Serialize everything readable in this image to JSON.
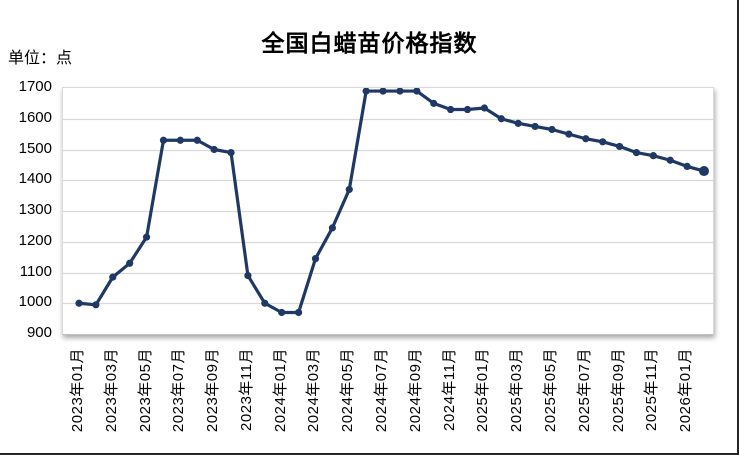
{
  "chart": {
    "title": "全国白蜡苗价格指数",
    "unit_label": "单位：点"
  },
  "chart_data": {
    "type": "line",
    "title": "全国白蜡苗价格指数",
    "unit": "点",
    "categories": [
      "2023年01月",
      "2023年02月",
      "2023年03月",
      "2023年04月",
      "2023年05月",
      "2023年06月",
      "2023年07月",
      "2023年08月",
      "2023年09月",
      "2023年10月",
      "2023年11月",
      "2023年12月",
      "2024年01月",
      "2024年02月",
      "2024年03月",
      "2024年04月",
      "2024年05月",
      "2024年06月",
      "2024年07月",
      "2024年08月",
      "2024年09月",
      "2024年10月",
      "2024年11月",
      "2024年12月",
      "2025年01月",
      "2025年02月",
      "2025年03月",
      "2025年04月",
      "2025年05月",
      "2025年06月",
      "2025年07月",
      "2025年08月",
      "2025年09月",
      "2025年10月",
      "2025年11月",
      "2025年12月",
      "2026年01月",
      "2026年02月"
    ],
    "values": [
      1000,
      995,
      1085,
      1130,
      1215,
      1530,
      1530,
      1530,
      1500,
      1490,
      1090,
      1000,
      970,
      970,
      1145,
      1245,
      1370,
      1690,
      1690,
      1690,
      1690,
      1650,
      1630,
      1630,
      1635,
      1600,
      1585,
      1575,
      1565,
      1550,
      1535,
      1525,
      1510,
      1490,
      1480,
      1465,
      1445,
      1430
    ],
    "y_tick_labels": [
      "1700",
      "1600",
      "1500",
      "1400",
      "1300",
      "1200",
      "1100",
      "1000",
      "900"
    ],
    "x_tick_labels": [
      "2023年01月",
      "2023年03月",
      "2023年05月",
      "2023年07月",
      "2023年09月",
      "2023年11月",
      "2024年01月",
      "2024年03月",
      "2024年05月",
      "2024年07月",
      "2024年09月",
      "2024年11月",
      "2025年01月",
      "2025年03月",
      "2025年05月",
      "2025年07月",
      "2025年09月",
      "2025年11月",
      "2026年01月"
    ],
    "x_label_interval": 2,
    "ylim": [
      900,
      1700
    ],
    "y_step": 100,
    "grid": true,
    "legend": false,
    "colors": {
      "line": "#1F3864",
      "marker": "#1F3864",
      "gridline": "#D9D9D9",
      "axis_line": "#BFBFBF",
      "text": "#000000",
      "background": "#FFFFFF"
    }
  }
}
